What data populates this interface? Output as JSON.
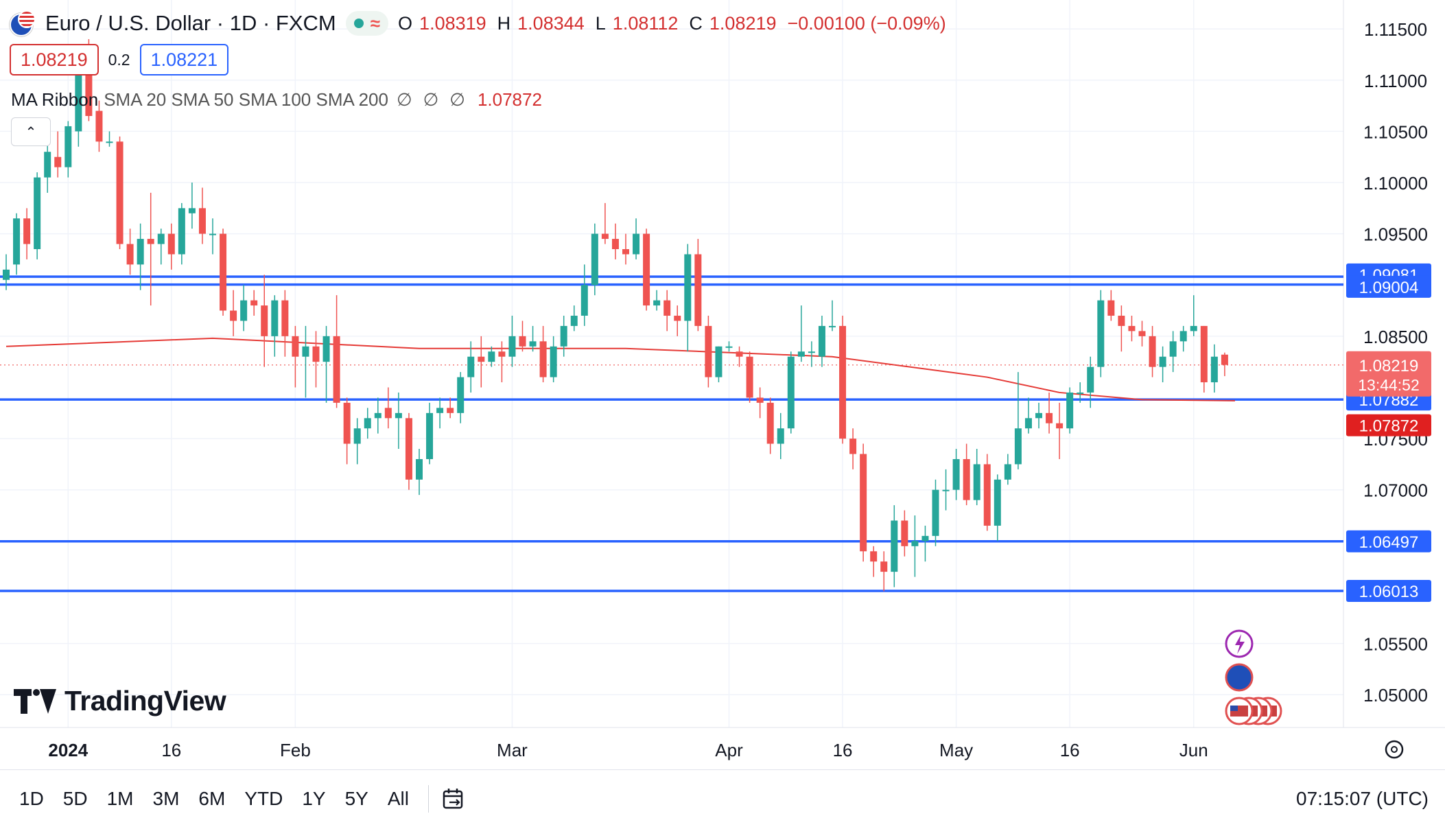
{
  "header": {
    "symbol_title": "Euro / U.S. Dollar · 1D · FXCM",
    "ohlc": {
      "o_label": "O",
      "o_value": "1.08319",
      "h_label": "H",
      "h_value": "1.08344",
      "l_label": "L",
      "l_value": "1.08112",
      "c_label": "C",
      "c_value": "1.08219",
      "change": "−0.00100 (−0.09%)"
    },
    "sell_price": "1.08219",
    "spread": "0.2",
    "buy_price": "1.08221"
  },
  "indicator": {
    "title": "MA Ribbon",
    "params": "SMA 20 SMA 50 SMA 100 SMA 200",
    "null_1": "∅",
    "null_2": "∅",
    "null_3": "∅",
    "value": "1.07872"
  },
  "logo_text": "TradingView",
  "range_buttons": [
    "1D",
    "5D",
    "1M",
    "3M",
    "6M",
    "YTD",
    "1Y",
    "5Y",
    "All"
  ],
  "clock": "07:15:07 (UTC)",
  "colors": {
    "up": "#26a69a",
    "down": "#ef5350",
    "ma": "#e53935",
    "level_line": "#2962ff",
    "level_label": "#2962ff",
    "grid": "#f0f3fa"
  },
  "chart_data": {
    "type": "candlestick",
    "title": "Euro / U.S. Dollar · 1D · FXCM",
    "ylim": [
      1.0455,
      1.1175
    ],
    "y_ticks": [
      "1.11500",
      "1.11000",
      "1.10500",
      "1.10000",
      "1.09500",
      "1.08500",
      "1.07500",
      "1.07000",
      "1.05500",
      "1.05000"
    ],
    "x_ticks": [
      {
        "label": "2024",
        "index": 6
      },
      {
        "label": "16",
        "index": 16
      },
      {
        "label": "Feb",
        "index": 28
      },
      {
        "label": "Mar",
        "index": 49
      },
      {
        "label": "Apr",
        "index": 70
      },
      {
        "label": "16",
        "index": 81
      },
      {
        "label": "May",
        "index": 92
      },
      {
        "label": "16",
        "index": 103
      },
      {
        "label": "Jun",
        "index": 115
      }
    ],
    "ohlc": [
      [
        1.0905,
        1.093,
        1.0895,
        1.0915
      ],
      [
        1.092,
        1.097,
        1.091,
        1.0965
      ],
      [
        1.0965,
        1.0975,
        1.0925,
        1.094
      ],
      [
        1.0935,
        1.101,
        1.0925,
        1.1005
      ],
      [
        1.1005,
        1.104,
        1.099,
        1.103
      ],
      [
        1.1025,
        1.105,
        1.1005,
        1.1015
      ],
      [
        1.1015,
        1.106,
        1.1005,
        1.1055
      ],
      [
        1.105,
        1.113,
        1.1035,
        1.111
      ],
      [
        1.1105,
        1.114,
        1.106,
        1.1065
      ],
      [
        1.107,
        1.108,
        1.103,
        1.104
      ],
      [
        1.104,
        1.105,
        1.1035,
        1.104
      ],
      [
        1.104,
        1.1045,
        1.0935,
        1.094
      ],
      [
        1.094,
        1.0955,
        1.091,
        1.092
      ],
      [
        1.092,
        1.096,
        1.0895,
        1.0945
      ],
      [
        1.0945,
        1.099,
        1.088,
        1.094
      ],
      [
        1.094,
        1.0955,
        1.092,
        1.095
      ],
      [
        1.095,
        1.096,
        1.0915,
        1.093
      ],
      [
        1.093,
        1.098,
        1.092,
        1.0975
      ],
      [
        1.097,
        1.1,
        1.0955,
        1.0975
      ],
      [
        1.0975,
        1.0995,
        1.094,
        1.095
      ],
      [
        1.095,
        1.0965,
        1.093,
        1.095
      ],
      [
        1.095,
        1.0955,
        1.087,
        1.0875
      ],
      [
        1.0875,
        1.0895,
        1.085,
        1.0865
      ],
      [
        1.0865,
        1.09,
        1.0855,
        1.0885
      ],
      [
        1.0885,
        1.0895,
        1.087,
        1.088
      ],
      [
        1.088,
        1.091,
        1.082,
        1.085
      ],
      [
        1.085,
        1.089,
        1.083,
        1.0885
      ],
      [
        1.0885,
        1.0895,
        1.083,
        1.085
      ],
      [
        1.085,
        1.086,
        1.08,
        1.083
      ],
      [
        1.083,
        1.086,
        1.079,
        1.084
      ],
      [
        1.084,
        1.0855,
        1.08,
        1.0825
      ],
      [
        1.0825,
        1.086,
        1.0785,
        1.085
      ],
      [
        1.085,
        1.089,
        1.078,
        1.0785
      ],
      [
        1.0785,
        1.079,
        1.0725,
        1.0745
      ],
      [
        1.0745,
        1.077,
        1.0725,
        1.076
      ],
      [
        1.076,
        1.078,
        1.075,
        1.077
      ],
      [
        1.077,
        1.079,
        1.0755,
        1.0775
      ],
      [
        1.078,
        1.08,
        1.076,
        1.077
      ],
      [
        1.077,
        1.0795,
        1.074,
        1.0775
      ],
      [
        1.077,
        1.0775,
        1.07,
        1.071
      ],
      [
        1.071,
        1.074,
        1.0695,
        1.073
      ],
      [
        1.073,
        1.0785,
        1.0725,
        1.0775
      ],
      [
        1.0775,
        1.079,
        1.076,
        1.078
      ],
      [
        1.078,
        1.079,
        1.077,
        1.0775
      ],
      [
        1.0775,
        1.0815,
        1.0765,
        1.081
      ],
      [
        1.081,
        1.0845,
        1.0795,
        1.083
      ],
      [
        1.083,
        1.085,
        1.08,
        1.0825
      ],
      [
        1.0825,
        1.084,
        1.082,
        1.0835
      ],
      [
        1.0835,
        1.0845,
        1.0805,
        1.083
      ],
      [
        1.083,
        1.087,
        1.082,
        1.085
      ],
      [
        1.085,
        1.0865,
        1.0835,
        1.084
      ],
      [
        1.084,
        1.086,
        1.0835,
        1.0845
      ],
      [
        1.0845,
        1.086,
        1.0805,
        1.081
      ],
      [
        1.081,
        1.085,
        1.0805,
        1.084
      ],
      [
        1.084,
        1.087,
        1.083,
        1.086
      ],
      [
        1.086,
        1.088,
        1.0855,
        1.087
      ],
      [
        1.087,
        1.092,
        1.086,
        1.09
      ],
      [
        1.09,
        1.096,
        1.089,
        1.095
      ],
      [
        1.095,
        1.098,
        1.094,
        1.0945
      ],
      [
        1.0945,
        1.096,
        1.0925,
        1.0935
      ],
      [
        1.0935,
        1.095,
        1.092,
        1.093
      ],
      [
        1.093,
        1.0965,
        1.0925,
        1.095
      ],
      [
        1.095,
        1.0955,
        1.0875,
        1.088
      ],
      [
        1.088,
        1.0895,
        1.0875,
        1.0885
      ],
      [
        1.0885,
        1.0895,
        1.0855,
        1.087
      ],
      [
        1.087,
        1.088,
        1.085,
        1.0865
      ],
      [
        1.0865,
        1.094,
        1.0835,
        1.093
      ],
      [
        1.093,
        1.0945,
        1.0855,
        1.086
      ],
      [
        1.086,
        1.087,
        1.08,
        1.081
      ],
      [
        1.081,
        1.084,
        1.0805,
        1.084
      ],
      [
        1.084,
        1.0845,
        1.0835,
        1.084
      ],
      [
        1.0835,
        1.084,
        1.082,
        1.083
      ],
      [
        1.083,
        1.0835,
        1.0785,
        1.079
      ],
      [
        1.079,
        1.08,
        1.077,
        1.0785
      ],
      [
        1.0785,
        1.079,
        1.0735,
        1.0745
      ],
      [
        1.0745,
        1.0775,
        1.073,
        1.076
      ],
      [
        1.076,
        1.0835,
        1.0755,
        1.083
      ],
      [
        1.083,
        1.088,
        1.0825,
        1.0835
      ],
      [
        1.0835,
        1.0845,
        1.082,
        1.0835
      ],
      [
        1.083,
        1.087,
        1.082,
        1.086
      ],
      [
        1.086,
        1.0885,
        1.0855,
        1.086
      ],
      [
        1.086,
        1.087,
        1.0745,
        1.075
      ],
      [
        1.075,
        1.076,
        1.072,
        1.0735
      ],
      [
        1.0735,
        1.0745,
        1.063,
        1.064
      ],
      [
        1.064,
        1.0645,
        1.0615,
        1.063
      ],
      [
        1.063,
        1.064,
        1.0601,
        1.062
      ],
      [
        1.062,
        1.0685,
        1.0605,
        1.067
      ],
      [
        1.067,
        1.068,
        1.0635,
        1.0645
      ],
      [
        1.0645,
        1.0675,
        1.0615,
        1.065
      ],
      [
        1.065,
        1.0665,
        1.063,
        1.0655
      ],
      [
        1.0655,
        1.071,
        1.0645,
        1.07
      ],
      [
        1.07,
        1.072,
        1.068,
        1.07
      ],
      [
        1.07,
        1.074,
        1.069,
        1.073
      ],
      [
        1.073,
        1.0745,
        1.0685,
        1.069
      ],
      [
        1.069,
        1.074,
        1.0685,
        1.0725
      ],
      [
        1.0725,
        1.0735,
        1.066,
        1.0665
      ],
      [
        1.0665,
        1.0715,
        1.065,
        1.071
      ],
      [
        1.071,
        1.0735,
        1.0705,
        1.0725
      ],
      [
        1.0725,
        1.0815,
        1.072,
        1.076
      ],
      [
        1.076,
        1.079,
        1.0755,
        1.077
      ],
      [
        1.077,
        1.0785,
        1.076,
        1.0775
      ],
      [
        1.0775,
        1.0795,
        1.0755,
        1.0765
      ],
      [
        1.0765,
        1.0785,
        1.073,
        1.076
      ],
      [
        1.076,
        1.08,
        1.0755,
        1.0795
      ],
      [
        1.0795,
        1.0805,
        1.0785,
        1.0795
      ],
      [
        1.0795,
        1.083,
        1.078,
        1.082
      ],
      [
        1.082,
        1.0895,
        1.081,
        1.0885
      ],
      [
        1.0885,
        1.0895,
        1.0865,
        1.087
      ],
      [
        1.087,
        1.088,
        1.0835,
        1.086
      ],
      [
        1.086,
        1.087,
        1.0845,
        1.0855
      ],
      [
        1.0855,
        1.0865,
        1.084,
        1.085
      ],
      [
        1.085,
        1.086,
        1.081,
        1.082
      ],
      [
        1.082,
        1.084,
        1.0805,
        1.083
      ],
      [
        1.083,
        1.0855,
        1.0815,
        1.0845
      ],
      [
        1.0845,
        1.086,
        1.0835,
        1.0855
      ],
      [
        1.0855,
        1.089,
        1.085,
        1.086
      ],
      [
        1.086,
        1.086,
        1.0795,
        1.0805
      ],
      [
        1.0805,
        1.0842,
        1.0795,
        1.083
      ],
      [
        1.0832,
        1.0834,
        1.0811,
        1.0822
      ]
    ],
    "ma_line": {
      "name": "SMA 200",
      "points": [
        [
          0,
          1.084
        ],
        [
          20,
          1.0848
        ],
        [
          40,
          1.0838
        ],
        [
          60,
          1.0838
        ],
        [
          80,
          1.083
        ],
        [
          95,
          1.081
        ],
        [
          102,
          1.0795
        ],
        [
          110,
          1.0788
        ],
        [
          119,
          1.0787
        ]
      ]
    },
    "current_price_line": 1.08219,
    "levels": [
      {
        "value": 1.09081,
        "label": "1.09081"
      },
      {
        "value": 1.09004,
        "label": "1.09004"
      },
      {
        "value": 1.07882,
        "label": "1.07882"
      },
      {
        "value": 1.06497,
        "label": "1.06497"
      },
      {
        "value": 1.06013,
        "label": "1.06013"
      }
    ],
    "price_tag": {
      "value": 1.08219,
      "label": "1.08219",
      "countdown": "13:44:52"
    },
    "ma_tag": {
      "value": 1.07872,
      "label": "1.07872"
    }
  }
}
